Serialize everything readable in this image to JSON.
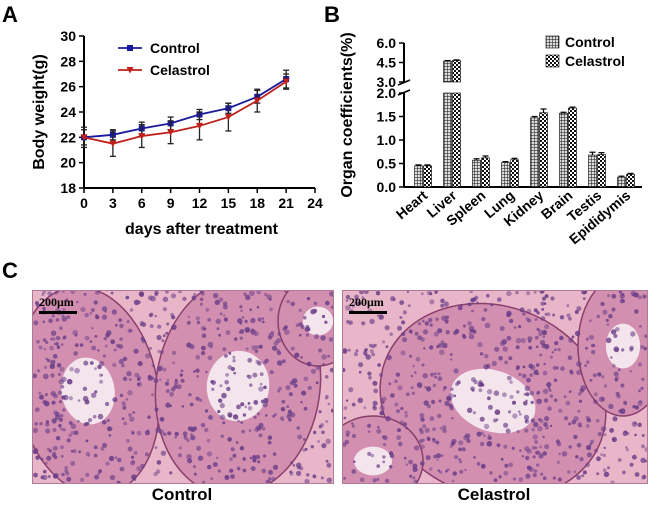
{
  "panels": {
    "a": "A",
    "b": "B",
    "c": "C"
  },
  "histology": {
    "captions": [
      "Control",
      "Celastrol"
    ],
    "scale_bar": "200μm",
    "colors": {
      "tissue": "#d28fb0",
      "nucleus": "#6a3e88",
      "lumen": "#f7eef3",
      "interstitium": "#e8b6c8"
    }
  },
  "chart_data": [
    {
      "type": "line",
      "title": "",
      "xlabel": "days after treatment",
      "ylabel": "Body weight(g)",
      "xlim": [
        0,
        24
      ],
      "ylim": [
        18,
        30
      ],
      "xticks": [
        0,
        3,
        6,
        9,
        12,
        15,
        18,
        21,
        24
      ],
      "yticks": [
        18,
        20,
        22,
        24,
        26,
        28,
        30
      ],
      "legend_position": "top-left",
      "x": [
        0,
        3,
        6,
        9,
        12,
        15,
        18,
        21
      ],
      "series": [
        {
          "name": "Control",
          "color": "#1a1a9c",
          "marker": "square",
          "values": [
            22.0,
            22.2,
            22.7,
            23.1,
            23.8,
            24.3,
            25.2,
            26.6
          ],
          "errors": [
            0.6,
            0.4,
            0.5,
            0.5,
            0.4,
            0.4,
            0.5,
            0.7
          ]
        },
        {
          "name": "Celastrol",
          "color": "#c0201a",
          "marker": "triangle-down",
          "values": [
            22.0,
            21.5,
            22.1,
            22.4,
            22.9,
            23.6,
            24.9,
            26.4
          ],
          "errors": [
            0.8,
            1.0,
            0.9,
            0.9,
            1.1,
            1.1,
            0.9,
            0.6
          ]
        }
      ]
    },
    {
      "type": "bar",
      "title": "",
      "xlabel": "",
      "ylabel": "Organ coefficients(%)",
      "axis_break": true,
      "ylim_lower": [
        0,
        2.0
      ],
      "ylim_upper": [
        3.0,
        6.0
      ],
      "yticks_lower": [
        "0.0",
        "0.5",
        "1.0",
        "1.5",
        "2.0"
      ],
      "yticks_upper": [
        "3.0",
        "4.5",
        "6.0"
      ],
      "legend_position": "top-right",
      "categories": [
        "Heart",
        "Liver",
        "Spleen",
        "Lung",
        "Kidney",
        "Brain",
        "Testis",
        "Epididymis"
      ],
      "series": [
        {
          "name": "Control",
          "pattern": "grid",
          "values": [
            0.45,
            4.6,
            0.57,
            0.52,
            1.47,
            1.57,
            0.68,
            0.21
          ],
          "errors": [
            0.02,
            0.05,
            0.03,
            0.02,
            0.03,
            0.02,
            0.06,
            0.02
          ]
        },
        {
          "name": "Celastrol",
          "pattern": "checker",
          "values": [
            0.45,
            4.65,
            0.62,
            0.58,
            1.58,
            1.68,
            0.69,
            0.27
          ],
          "errors": [
            0.02,
            0.05,
            0.04,
            0.03,
            0.08,
            0.02,
            0.04,
            0.02
          ]
        }
      ]
    }
  ]
}
